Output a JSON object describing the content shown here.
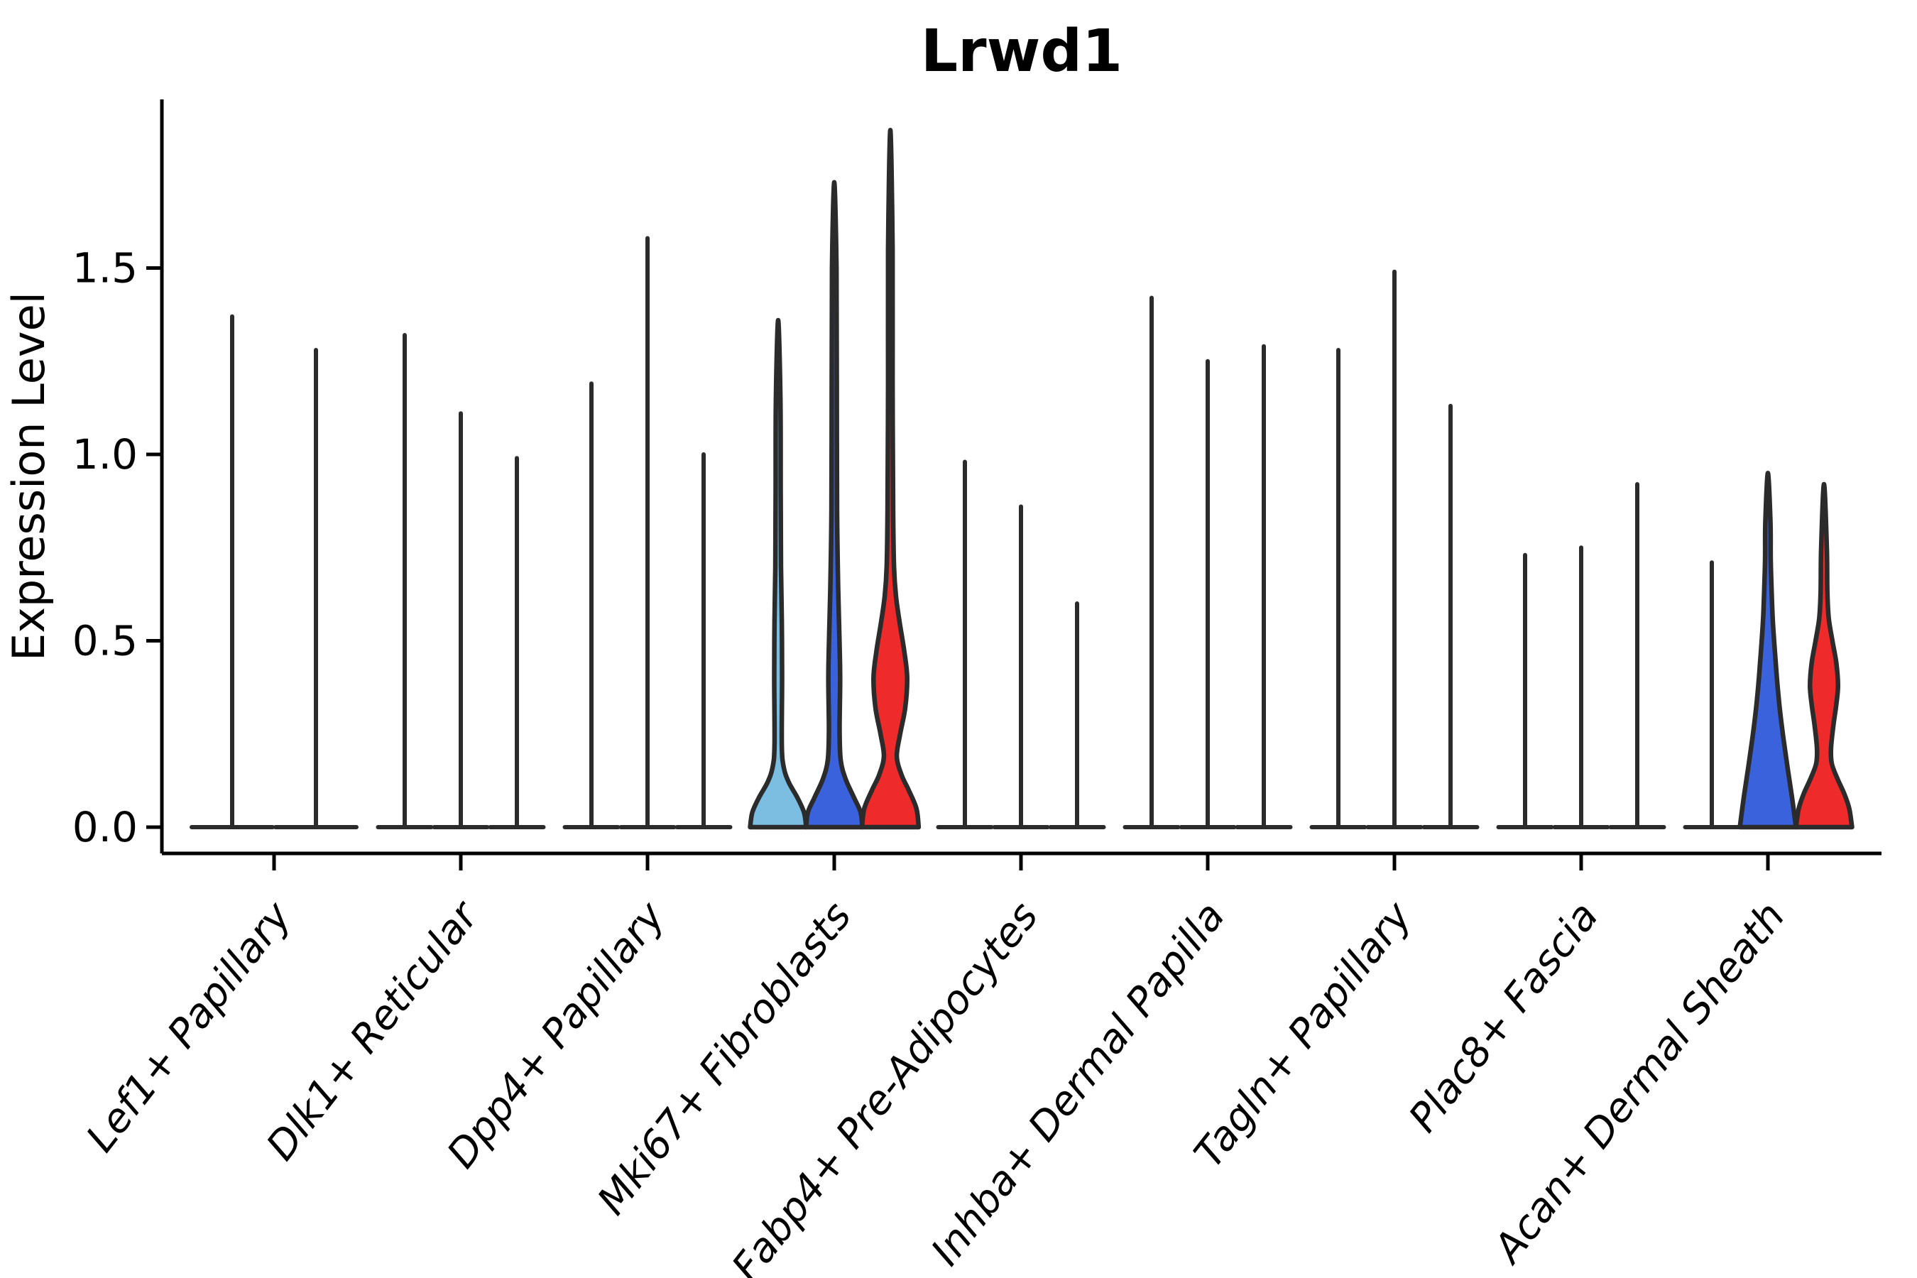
{
  "figure": {
    "background": "#ffffff"
  },
  "chart_data": {
    "type": "violin",
    "title": "Lrwd1",
    "ylabel": "Expression Level",
    "xlabel": "",
    "ylim": [
      0,
      1.95
    ],
    "yticks": [
      0,
      0.5,
      1.0,
      1.5
    ],
    "ytick_labels": [
      "0.0",
      "0.5",
      "1.0",
      "1.5"
    ],
    "grid": false,
    "legend": "none",
    "colors": {
      "light_blue": "#7CBEE2",
      "blue": "#3A62DC",
      "red": "#EF2A2A",
      "outline": "#2B2B2B",
      "axis": "#000000"
    },
    "categories": [
      "Lef1+ Papillary",
      "Dlk1+ Reticular",
      "Dpp4+ Papillary",
      "Mki67+ Fibroblasts",
      "Fabp4+ Pre-Adipocytes",
      "Inhba+ Dermal Papilla",
      "Tagln+ Papillary",
      "Plac8+ Fascia",
      "Acan+ Dermal Sheath"
    ],
    "groups": [
      {
        "category": "Lef1+ Papillary",
        "violins": [
          {
            "shape": "spike",
            "max": 1.37
          },
          {
            "shape": "spike",
            "max": 1.28
          }
        ]
      },
      {
        "category": "Dlk1+ Reticular",
        "violins": [
          {
            "shape": "spike",
            "max": 1.32
          },
          {
            "shape": "spike",
            "max": 1.11
          },
          {
            "shape": "spike",
            "max": 0.99
          }
        ]
      },
      {
        "category": "Dpp4+ Papillary",
        "violins": [
          {
            "shape": "spike",
            "max": 1.19
          },
          {
            "shape": "spike",
            "max": 1.58
          },
          {
            "shape": "spike",
            "max": 1.0
          }
        ]
      },
      {
        "category": "Mki67+ Fibroblasts",
        "violins": [
          {
            "shape": "body",
            "fill": "light_blue",
            "max": 1.36,
            "profile": [
              [
                0,
                1.0
              ],
              [
                0.04,
                0.92
              ],
              [
                0.08,
                0.68
              ],
              [
                0.12,
                0.38
              ],
              [
                0.16,
                0.2
              ],
              [
                0.22,
                0.13
              ],
              [
                0.4,
                0.14
              ],
              [
                0.55,
                0.13
              ],
              [
                0.7,
                0.1
              ],
              [
                0.9,
                0.09
              ],
              [
                1.15,
                0.08
              ],
              [
                1.36,
                0
              ]
            ]
          },
          {
            "shape": "body",
            "fill": "blue",
            "max": 1.73,
            "profile": [
              [
                0,
                1.0
              ],
              [
                0.04,
                0.94
              ],
              [
                0.08,
                0.7
              ],
              [
                0.13,
                0.4
              ],
              [
                0.18,
                0.23
              ],
              [
                0.26,
                0.19
              ],
              [
                0.4,
                0.21
              ],
              [
                0.52,
                0.18
              ],
              [
                0.64,
                0.14
              ],
              [
                0.85,
                0.1
              ],
              [
                1.2,
                0.09
              ],
              [
                1.5,
                0.08
              ],
              [
                1.73,
                0
              ]
            ]
          },
          {
            "shape": "body",
            "fill": "red",
            "max": 1.87,
            "profile": [
              [
                0,
                1.01
              ],
              [
                0.05,
                0.93
              ],
              [
                0.1,
                0.65
              ],
              [
                0.14,
                0.4
              ],
              [
                0.19,
                0.23
              ],
              [
                0.25,
                0.35
              ],
              [
                0.32,
                0.53
              ],
              [
                0.4,
                0.6
              ],
              [
                0.47,
                0.5
              ],
              [
                0.55,
                0.33
              ],
              [
                0.62,
                0.2
              ],
              [
                0.7,
                0.13
              ],
              [
                0.85,
                0.1
              ],
              [
                1.2,
                0.08
              ],
              [
                1.55,
                0.08
              ],
              [
                1.87,
                0
              ]
            ]
          }
        ]
      },
      {
        "category": "Fabp4+ Pre-Adipocytes",
        "violins": [
          {
            "shape": "spike",
            "max": 0.98
          },
          {
            "shape": "spike",
            "max": 0.86
          },
          {
            "shape": "spike",
            "max": 0.6
          }
        ]
      },
      {
        "category": "Inhba+ Dermal Papilla",
        "violins": [
          {
            "shape": "spike",
            "max": 1.42
          },
          {
            "shape": "spike",
            "max": 1.25
          },
          {
            "shape": "spike",
            "max": 1.29
          }
        ]
      },
      {
        "category": "Tagln+ Papillary",
        "violins": [
          {
            "shape": "spike",
            "max": 1.28
          },
          {
            "shape": "spike",
            "max": 1.49
          },
          {
            "shape": "spike",
            "max": 1.13
          }
        ]
      },
      {
        "category": "Plac8+ Fascia",
        "violins": [
          {
            "shape": "spike",
            "max": 0.73
          },
          {
            "shape": "spike",
            "max": 0.75
          },
          {
            "shape": "spike",
            "max": 0.92
          }
        ]
      },
      {
        "category": "Acan+ Dermal Sheath",
        "violins": [
          {
            "shape": "spike",
            "max": 0.71
          },
          {
            "shape": "body",
            "fill": "blue",
            "max": 0.95,
            "profile": [
              [
                0,
                1.0
              ],
              [
                0.08,
                0.86
              ],
              [
                0.16,
                0.7
              ],
              [
                0.24,
                0.55
              ],
              [
                0.32,
                0.42
              ],
              [
                0.4,
                0.32
              ],
              [
                0.48,
                0.24
              ],
              [
                0.56,
                0.17
              ],
              [
                0.64,
                0.13
              ],
              [
                0.72,
                0.1
              ],
              [
                0.82,
                0.09
              ],
              [
                0.95,
                0
              ]
            ]
          },
          {
            "shape": "body",
            "fill": "red",
            "max": 0.92,
            "profile": [
              [
                0,
                1.0
              ],
              [
                0.05,
                0.9
              ],
              [
                0.09,
                0.72
              ],
              [
                0.13,
                0.48
              ],
              [
                0.17,
                0.28
              ],
              [
                0.21,
                0.25
              ],
              [
                0.27,
                0.33
              ],
              [
                0.33,
                0.44
              ],
              [
                0.38,
                0.5
              ],
              [
                0.44,
                0.44
              ],
              [
                0.5,
                0.3
              ],
              [
                0.56,
                0.17
              ],
              [
                0.63,
                0.12
              ],
              [
                0.75,
                0.1
              ],
              [
                0.92,
                0
              ]
            ]
          }
        ]
      }
    ]
  }
}
